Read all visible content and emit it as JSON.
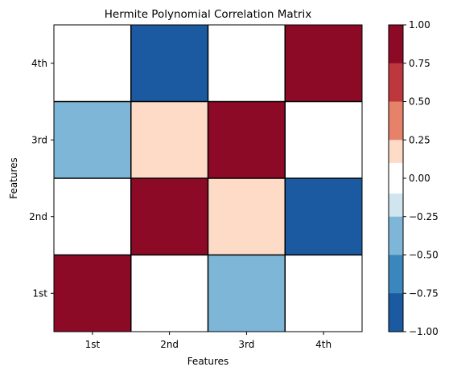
{
  "chart_data": {
    "type": "heatmap",
    "title": "Hermite Polynomial Correlation Matrix",
    "xlabel": "Features",
    "ylabel": "Features",
    "x_categories": [
      "1st",
      "2nd",
      "3rd",
      "4th"
    ],
    "y_categories": [
      "1st",
      "2nd",
      "3rd",
      "4th"
    ],
    "values": [
      [
        1.0,
        0.0,
        -0.4,
        0.0
      ],
      [
        0.0,
        1.0,
        0.15,
        -0.8
      ],
      [
        -0.4,
        0.15,
        1.0,
        0.0
      ],
      [
        0.0,
        -0.8,
        0.0,
        1.0
      ]
    ],
    "colormap": "RdBu_r",
    "colorbar": {
      "range": [
        -1.0,
        1.0
      ],
      "ticks": [
        "1.00",
        "0.75",
        "0.50",
        "0.25",
        "0.00",
        "−0.25",
        "−0.50",
        "−0.75",
        "−1.00"
      ],
      "tick_values": [
        1.0,
        0.75,
        0.5,
        0.25,
        0.0,
        -0.25,
        -0.5,
        -0.75,
        -1.0
      ],
      "position": "right"
    },
    "grid": false
  }
}
